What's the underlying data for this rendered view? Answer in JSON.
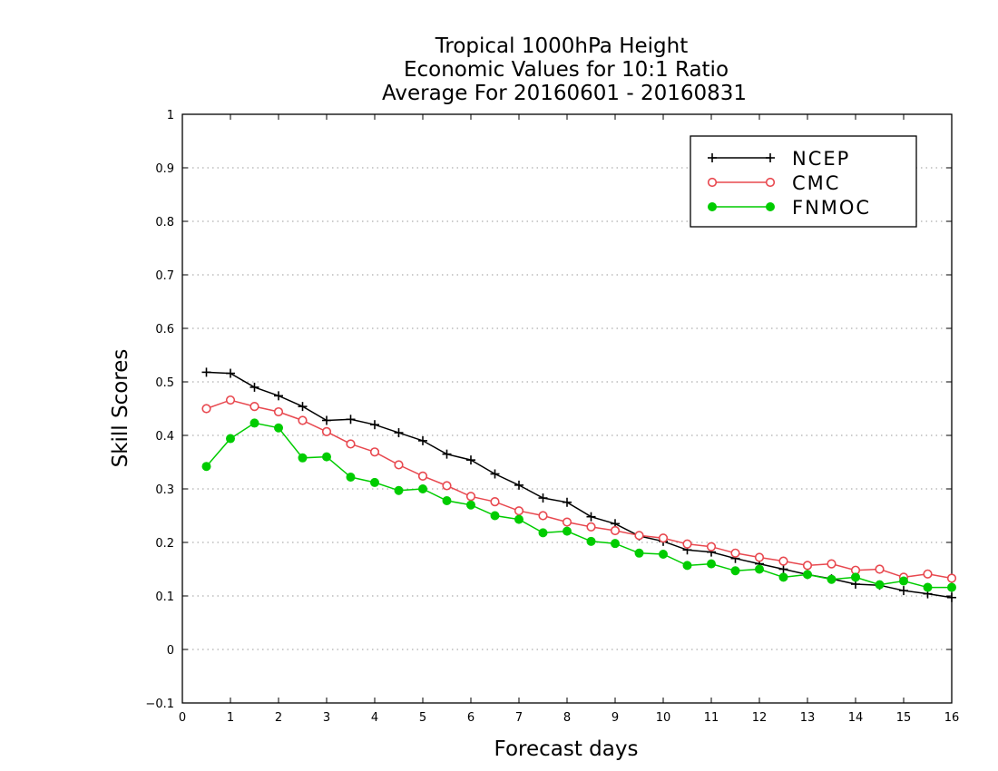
{
  "chart_data": {
    "type": "line",
    "title": [
      "Tropical 1000hPa Height",
      "Economic Values for 10:1 Ratio",
      "Average For 20160601 - 20160831"
    ],
    "xlabel": "Forecast days",
    "ylabel": "Skill Scores",
    "xlim": [
      0,
      16
    ],
    "ylim": [
      -0.1,
      1
    ],
    "xticks": [
      "0",
      "1",
      "2",
      "3",
      "4",
      "5",
      "6",
      "7",
      "8",
      "9",
      "10",
      "11",
      "12",
      "13",
      "14",
      "15",
      "16"
    ],
    "yticks": [
      "−0.1",
      "0",
      "0.1",
      "0.2",
      "0.3",
      "0.4",
      "0.5",
      "0.6",
      "0.7",
      "0.8",
      "0.9",
      "1"
    ],
    "grid": "horizontal-dotted",
    "legend_position": "top-right",
    "x": [
      0.5,
      1,
      1.5,
      2,
      2.5,
      3,
      3.5,
      4,
      4.5,
      5,
      5.5,
      6,
      6.5,
      7,
      7.5,
      8,
      8.5,
      9,
      9.5,
      10,
      10.5,
      11,
      11.5,
      12,
      12.5,
      13,
      13.5,
      14,
      14.5,
      15,
      15.5,
      16
    ],
    "series": [
      {
        "name": "NCEP",
        "color": "#000000",
        "marker": "plus",
        "values": [
          0.518,
          0.516,
          0.49,
          0.474,
          0.454,
          0.428,
          0.43,
          0.42,
          0.405,
          0.39,
          0.365,
          0.354,
          0.328,
          0.307,
          0.283,
          0.275,
          0.248,
          0.235,
          0.212,
          0.202,
          0.186,
          0.182,
          0.17,
          0.16,
          0.15,
          0.14,
          0.132,
          0.122,
          0.12,
          0.11,
          0.104,
          0.097
        ]
      },
      {
        "name": "CMC",
        "color": "#e8484f",
        "marker": "open-circle",
        "values": [
          0.45,
          0.466,
          0.454,
          0.444,
          0.428,
          0.407,
          0.384,
          0.369,
          0.345,
          0.324,
          0.306,
          0.286,
          0.276,
          0.259,
          0.25,
          0.238,
          0.229,
          0.222,
          0.213,
          0.208,
          0.197,
          0.192,
          0.18,
          0.172,
          0.165,
          0.157,
          0.16,
          0.148,
          0.15,
          0.135,
          0.141,
          0.133
        ]
      },
      {
        "name": "FNMOC",
        "color": "#00cc00",
        "marker": "filled-circle",
        "values": [
          0.342,
          0.394,
          0.423,
          0.414,
          0.358,
          0.36,
          0.322,
          0.312,
          0.297,
          0.3,
          0.278,
          0.27,
          0.25,
          0.243,
          0.218,
          0.221,
          0.202,
          0.198,
          0.18,
          0.178,
          0.157,
          0.16,
          0.147,
          0.15,
          0.135,
          0.14,
          0.131,
          0.135,
          0.121,
          0.128,
          0.116,
          0.116
        ]
      }
    ]
  }
}
